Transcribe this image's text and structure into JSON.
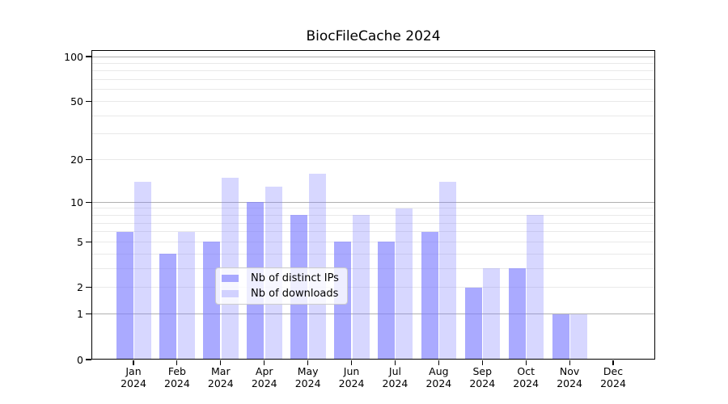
{
  "title": "BiocFileCache 2024",
  "colors": {
    "bar_distinct_ips": "rgba(124,124,255,0.65)",
    "bar_downloads": "rgba(124,124,255,0.3)",
    "grid_major": "#b0b0b0",
    "grid_minor": "#e9e9e9",
    "axis": "#000000",
    "legend_border": "#cccccc",
    "background": "#ffffff"
  },
  "chart_data": {
    "type": "bar",
    "title": "BiocFileCache 2024",
    "categories": [
      "Jan 2024",
      "Feb 2024",
      "Mar 2024",
      "Apr 2024",
      "May 2024",
      "Jun 2024",
      "Jul 2024",
      "Aug 2024",
      "Sep 2024",
      "Oct 2024",
      "Nov 2024",
      "Dec 2024"
    ],
    "series": [
      {
        "name": "Nb of distinct IPs",
        "color": "rgba(124,124,255,0.65)",
        "values": [
          6,
          4,
          5,
          10,
          8,
          5,
          5,
          6,
          2,
          3,
          1,
          0
        ]
      },
      {
        "name": "Nb of downloads",
        "color": "rgba(124,124,255,0.3)",
        "values": [
          14,
          6,
          15,
          13,
          16,
          8,
          9,
          14,
          3,
          8,
          1,
          0
        ]
      }
    ],
    "xlabel": "",
    "ylabel": "",
    "yscale": "log1p",
    "ylim": [
      0,
      106
    ],
    "yticks": [
      0,
      1,
      2,
      5,
      10,
      20,
      50,
      100
    ],
    "major_gridlines": [
      1,
      10,
      100
    ],
    "minor_gridlines": [
      2,
      3,
      4,
      5,
      6,
      7,
      8,
      9,
      20,
      30,
      40,
      50,
      60,
      70,
      80,
      90
    ],
    "grid": true,
    "legend_position": "lower-center"
  }
}
